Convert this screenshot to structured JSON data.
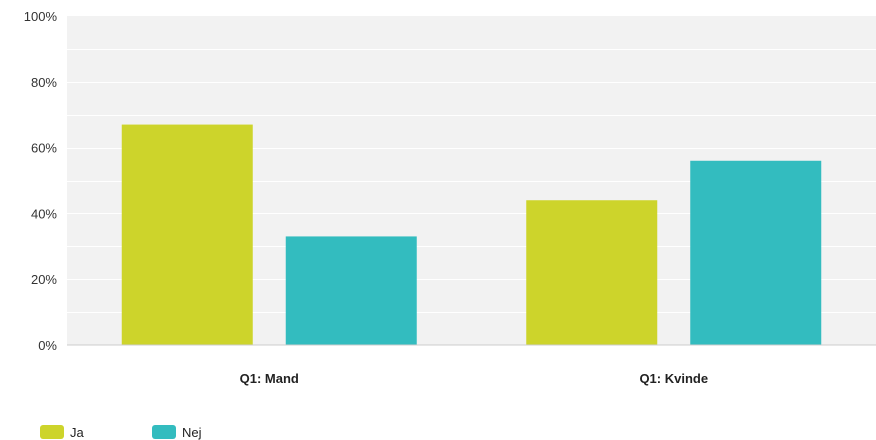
{
  "chart_data": {
    "type": "bar",
    "categories": [
      "Q1: Mand",
      "Q1: Kvinde"
    ],
    "series": [
      {
        "name": "Ja",
        "values": [
          67,
          44
        ],
        "color": "#cdd42b"
      },
      {
        "name": "Nej",
        "values": [
          33,
          56
        ],
        "color": "#33bcbf"
      }
    ],
    "ylim": [
      0,
      100
    ],
    "yticks": [
      0,
      20,
      40,
      60,
      80,
      100
    ],
    "ytick_labels": [
      "0%",
      "20%",
      "40%",
      "60%",
      "80%",
      "100%"
    ],
    "title": "",
    "xlabel": "",
    "ylabel": "",
    "grid": true,
    "legend_position": "bottom-left",
    "plot_background": "#f2f2f2"
  }
}
